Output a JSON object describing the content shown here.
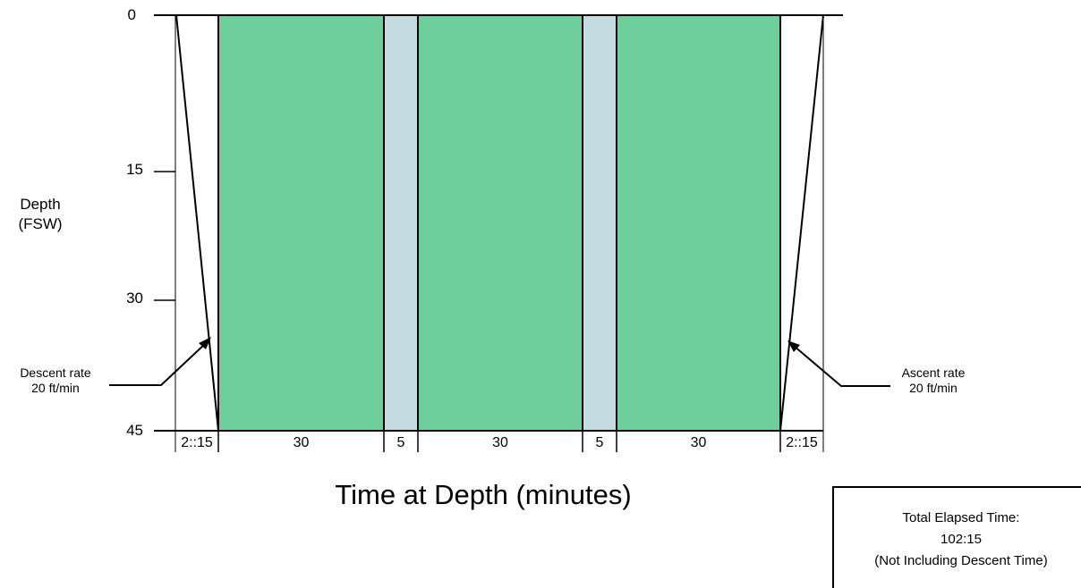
{
  "axes": {
    "y_label_line1": "Depth",
    "y_label_line2": "(FSW)",
    "y_ticks": [
      "0",
      "15",
      "30",
      "45"
    ],
    "x_label": "Time at Depth (minutes)"
  },
  "profile": {
    "segments": [
      {
        "label": "2::15",
        "kind": "descent",
        "minutes": 2.25
      },
      {
        "label": "30",
        "kind": "bottom",
        "color": "#6fce9b",
        "minutes": 30
      },
      {
        "label": "5",
        "kind": "break",
        "color": "#c4dbe1",
        "minutes": 5
      },
      {
        "label": "30",
        "kind": "bottom",
        "color": "#6fce9b",
        "minutes": 30
      },
      {
        "label": "5",
        "kind": "break",
        "color": "#c4dbe1",
        "minutes": 5
      },
      {
        "label": "30",
        "kind": "bottom",
        "color": "#6fce9b",
        "minutes": 30
      },
      {
        "label": "2::15",
        "kind": "ascent",
        "minutes": 2.25
      }
    ]
  },
  "annotations": {
    "descent_line1": "Descent rate",
    "descent_line2": "20 ft/min",
    "ascent_line1": "Ascent rate",
    "ascent_line2": "20 ft/min"
  },
  "summary": {
    "line1": "Total Elapsed Time:",
    "line2": "102:15",
    "line3": "(Not Including Descent Time)"
  }
}
